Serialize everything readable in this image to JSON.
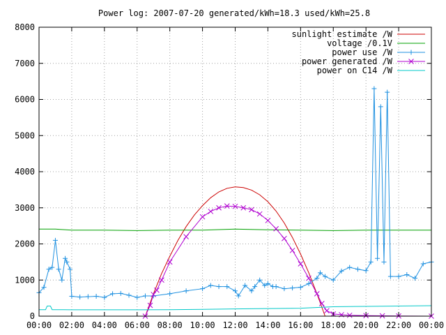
{
  "chart_data": {
    "type": "line",
    "title": "Power log: 2007-07-20 generated/kWh=18.3 used/kWh=25.8",
    "xlabel": "",
    "ylabel": "",
    "xlim": [
      0,
      24
    ],
    "ylim": [
      0,
      8000
    ],
    "x_ticks": [
      "00:00",
      "02:00",
      "04:00",
      "06:00",
      "08:00",
      "10:00",
      "12:00",
      "14:00",
      "16:00",
      "18:00",
      "20:00",
      "22:00",
      "00:00"
    ],
    "y_ticks": [
      "0",
      "1000",
      "2000",
      "3000",
      "4000",
      "5000",
      "6000",
      "7000",
      "8000"
    ],
    "grid": true,
    "legend_position": "top-right",
    "series": [
      {
        "name": "sunlight estimate /W",
        "color": "#cc0000",
        "marker": "none",
        "x": [
          6.5,
          7,
          7.5,
          8,
          8.5,
          9,
          9.5,
          10,
          10.5,
          11,
          11.5,
          12,
          12.5,
          13,
          13.5,
          14,
          14.5,
          15,
          15.5,
          16,
          16.5,
          17,
          17.5
        ],
        "y": [
          0,
          620,
          1180,
          1660,
          2100,
          2480,
          2800,
          3060,
          3280,
          3440,
          3540,
          3580,
          3560,
          3490,
          3360,
          3170,
          2910,
          2580,
          2180,
          1720,
          1200,
          620,
          0
        ]
      },
      {
        "name": "voltage /0.1V",
        "color": "#00a000",
        "marker": "none",
        "x": [
          0,
          1,
          1.3,
          2,
          4,
          6,
          8,
          10,
          12,
          14,
          16,
          18,
          20,
          22,
          24
        ],
        "y": [
          2410,
          2410,
          2400,
          2380,
          2380,
          2370,
          2380,
          2380,
          2410,
          2390,
          2380,
          2370,
          2380,
          2380,
          2380
        ]
      },
      {
        "name": "power use /W",
        "color": "#1e90e0",
        "marker": "plus",
        "x": [
          0,
          0.3,
          0.6,
          0.8,
          1,
          1.2,
          1.4,
          1.6,
          1.7,
          1.9,
          2,
          2.5,
          3,
          3.5,
          4,
          4.5,
          5,
          5.5,
          6,
          6.5,
          7,
          8,
          9,
          10,
          10.5,
          11,
          11.5,
          12,
          12.2,
          12.6,
          13,
          13.2,
          13.5,
          13.8,
          14,
          14.3,
          14.5,
          15,
          15.5,
          16,
          16.5,
          17,
          17.2,
          17.5,
          18,
          18.5,
          19,
          19.5,
          20,
          20.3,
          20.5,
          20.7,
          20.9,
          21.1,
          21.3,
          21.5,
          22,
          22.5,
          23,
          23.5,
          24
        ],
        "y": [
          650,
          800,
          1300,
          1350,
          2100,
          1300,
          1000,
          1600,
          1500,
          1300,
          550,
          530,
          540,
          550,
          520,
          620,
          630,
          580,
          520,
          560,
          560,
          620,
          700,
          760,
          850,
          820,
          820,
          700,
          560,
          850,
          700,
          820,
          1000,
          850,
          900,
          820,
          820,
          760,
          780,
          800,
          900,
          1050,
          1200,
          1100,
          1000,
          1250,
          1350,
          1300,
          1260,
          1500,
          6300,
          1600,
          5800,
          1500,
          6200,
          1100,
          1100,
          1150,
          1050,
          1450,
          1500
        ]
      },
      {
        "name": "power generated /W",
        "color": "#b000d0",
        "marker": "cross",
        "x": [
          6.5,
          6.8,
          7,
          7.2,
          7.5,
          8,
          9,
          10,
          10.5,
          11,
          11.5,
          12,
          12.5,
          13,
          13.5,
          14,
          14.5,
          15,
          15.5,
          16,
          16.5,
          17,
          17.3,
          17.6,
          18,
          18.5,
          19,
          20,
          21,
          22,
          24
        ],
        "y": [
          0,
          300,
          600,
          720,
          1000,
          1500,
          2200,
          2750,
          2900,
          3000,
          3050,
          3040,
          3000,
          2950,
          2830,
          2650,
          2420,
          2150,
          1820,
          1450,
          1050,
          620,
          350,
          150,
          60,
          40,
          25,
          15,
          10,
          5,
          0
        ]
      },
      {
        "name": "power on C14 /W",
        "color": "#00c8c8",
        "marker": "none",
        "x": [
          0,
          0.4,
          0.5,
          0.7,
          0.8,
          1.5,
          2,
          4,
          6,
          8,
          10,
          12,
          14,
          16,
          18,
          20,
          22,
          24
        ],
        "y": [
          180,
          180,
          280,
          280,
          180,
          180,
          175,
          175,
          175,
          180,
          190,
          200,
          210,
          220,
          260,
          270,
          280,
          290
        ]
      }
    ]
  }
}
